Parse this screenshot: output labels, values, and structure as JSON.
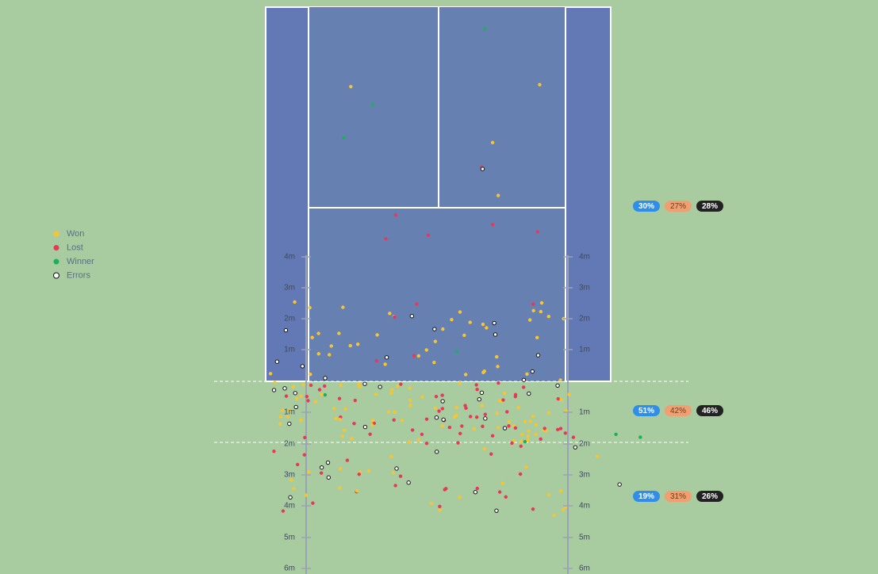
{
  "legend": [
    {
      "label": "Won"
    },
    {
      "label": "Lost"
    },
    {
      "label": "Winner"
    },
    {
      "label": "Errors"
    }
  ],
  "badges": [
    [
      "30%",
      "27%",
      "28%"
    ],
    [
      "51%",
      "42%",
      "46%"
    ],
    [
      "19%",
      "31%",
      "26%"
    ]
  ],
  "scale": {
    "court": [
      "4m",
      "3m",
      "2m",
      "1m"
    ],
    "outside": [
      "1m",
      "2m",
      "3m",
      "4m",
      "5m",
      "6m"
    ]
  }
}
